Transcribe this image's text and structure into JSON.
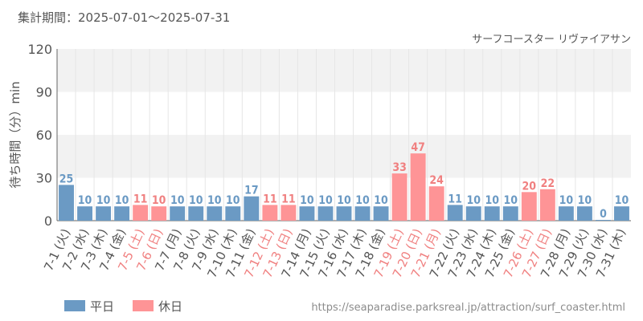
{
  "header": {
    "period_label": "集計期間：2025-07-01～2025-07-31",
    "attraction": "サーフコースター リヴァイアサン"
  },
  "footer": {
    "source_url": "https://seaparadise.parksreal.jp/attraction/surf_coaster.html"
  },
  "colors": {
    "weekday": "#6b9ac4",
    "holiday": "#fe9496",
    "weekday_text": "#6b9ac4",
    "holiday_text": "#f08080",
    "grid_band": "#f2f2f2",
    "axis_text": "#555555"
  },
  "chart_data": {
    "type": "bar",
    "title": "",
    "ylabel": "待ち時間（分）min",
    "ylim": [
      0,
      120
    ],
    "yticks": [
      0,
      30,
      60,
      90,
      120
    ],
    "grid": true,
    "legend": {
      "placement": "bottom-left",
      "entries": [
        {
          "key": "weekday",
          "label": "平日"
        },
        {
          "key": "holiday",
          "label": "休日"
        }
      ]
    },
    "categories": [
      "7-1 (火)",
      "7-2 (水)",
      "7-3 (木)",
      "7-4 (金)",
      "7-5 (土)",
      "7-6 (日)",
      "7-7 (月)",
      "7-8 (火)",
      "7-9 (水)",
      "7-10 (木)",
      "7-11 (金)",
      "7-12 (土)",
      "7-13 (日)",
      "7-14 (月)",
      "7-15 (火)",
      "7-16 (水)",
      "7-17 (木)",
      "7-18 (金)",
      "7-19 (土)",
      "7-20 (日)",
      "7-21 (月)",
      "7-22 (火)",
      "7-23 (水)",
      "7-24 (木)",
      "7-25 (金)",
      "7-26 (土)",
      "7-27 (日)",
      "7-28 (月)",
      "7-29 (火)",
      "7-30 (水)",
      "7-31 (木)"
    ],
    "values": [
      25,
      10,
      10,
      10,
      11,
      10,
      10,
      10,
      10,
      10,
      17,
      11,
      11,
      10,
      10,
      10,
      10,
      10,
      33,
      47,
      24,
      11,
      10,
      10,
      10,
      20,
      22,
      10,
      10,
      0,
      10
    ],
    "day_type": [
      "weekday",
      "weekday",
      "weekday",
      "weekday",
      "holiday",
      "holiday",
      "weekday",
      "weekday",
      "weekday",
      "weekday",
      "weekday",
      "holiday",
      "holiday",
      "weekday",
      "weekday",
      "weekday",
      "weekday",
      "weekday",
      "holiday",
      "holiday",
      "holiday",
      "weekday",
      "weekday",
      "weekday",
      "weekday",
      "holiday",
      "holiday",
      "weekday",
      "weekday",
      "weekday",
      "weekday"
    ]
  }
}
